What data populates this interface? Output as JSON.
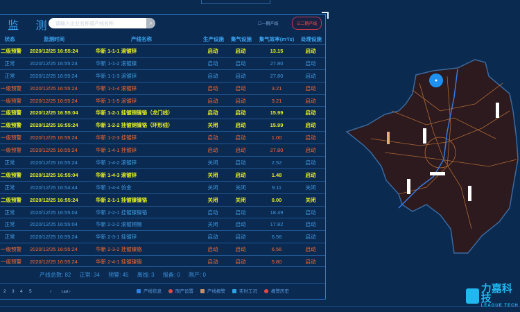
{
  "header": {
    "title": "监 测",
    "search_placeholder": "请输入企业名称或产线名称",
    "options": [
      "一期产线",
      "二期产线"
    ],
    "selected_option": "二期产线"
  },
  "columns": [
    "状态",
    "监测时间",
    "产线名称",
    "生产设施",
    "集气设施",
    "集气效率(m³/s)",
    "处理设施"
  ],
  "rows": [
    {
      "status": "二级预警",
      "level": "warn2",
      "time": "2020/12/25 16:55:24",
      "name": "华新 1-1-1 滚镀锌",
      "prod": "启动",
      "gas": "启动",
      "eff": "13.15",
      "treat": "启动"
    },
    {
      "status": "正常",
      "level": "normal",
      "time": "2020/12/25 16:55:24",
      "name": "华新 1-1-2 滚镀镍",
      "prod": "启动",
      "gas": "启动",
      "eff": "27.80",
      "treat": "启动"
    },
    {
      "status": "正常",
      "level": "normal",
      "time": "2020/12/25 16:55:24",
      "name": "华新 1-1-3 滚镀锌",
      "prod": "启动",
      "gas": "启动",
      "eff": "27.80",
      "treat": "启动"
    },
    {
      "status": "一级预警",
      "level": "warn1",
      "time": "2020/12/25 16:55:24",
      "name": "华新 1-1-4 滚镀锌",
      "prod": "启动",
      "gas": "启动",
      "eff": "3.21",
      "treat": "启动"
    },
    {
      "status": "一级预警",
      "level": "warn1",
      "time": "2020/12/25 16:55:24",
      "name": "华新 1-1-5 滚镀锌",
      "prod": "启动",
      "gas": "启动",
      "eff": "3.21",
      "treat": "启动"
    },
    {
      "status": "二级预警",
      "level": "warn2",
      "time": "2020/12/25 16:55:04",
      "name": "华新 1-2-1 挂镀铜镍铬（龙门线）",
      "prod": "启动",
      "gas": "启动",
      "eff": "15.99",
      "treat": "启动"
    },
    {
      "status": "二级预警",
      "level": "warn2",
      "time": "2020/12/25 16:55:24",
      "name": "华新 1-2-2 挂镀铜镍铬（环形线）",
      "prod": "关闭",
      "gas": "启动",
      "eff": "15.99",
      "treat": "启动"
    },
    {
      "status": "一级预警",
      "level": "warn1",
      "time": "2020/12/25 16:55:24",
      "name": "华新 1-2-3 挂镀锌",
      "prod": "启动",
      "gas": "启动",
      "eff": "1.00",
      "treat": "启动"
    },
    {
      "status": "一级预警",
      "level": "warn1",
      "time": "2020/12/25 16:55:24",
      "name": "华新 1-4-1 挂镀锌",
      "prod": "启动",
      "gas": "启动",
      "eff": "27.80",
      "treat": "启动"
    },
    {
      "status": "正常",
      "level": "normal",
      "time": "2020/12/25 16:55:24",
      "name": "华新 1-4-2 滚镀锌",
      "prod": "关闭",
      "gas": "启动",
      "eff": "2.52",
      "treat": "启动"
    },
    {
      "status": "二级预警",
      "level": "warn2",
      "time": "2020/12/25 16:55:04",
      "name": "华新 1-4-3 滚镀锌",
      "prod": "关闭",
      "gas": "启动",
      "eff": "1.48",
      "treat": "启动"
    },
    {
      "status": "正常",
      "level": "normal",
      "time": "2020/12/25 16:54:44",
      "name": "华新 1-4-4 仿金",
      "prod": "关闭",
      "gas": "关闭",
      "eff": "9.11",
      "treat": "关闭"
    },
    {
      "status": "二级预警",
      "level": "warn2",
      "time": "2020/12/25 16:55:24",
      "name": "华新 2-1-1 挂镀镍镍铬",
      "prod": "关闭",
      "gas": "关闭",
      "eff": "0.00",
      "treat": "关闭"
    },
    {
      "status": "正常",
      "level": "normal",
      "time": "2020/12/25 16:55:04",
      "name": "华新 2-2-1 挂镀镍镍铬",
      "prod": "启动",
      "gas": "启动",
      "eff": "18.49",
      "treat": "启动"
    },
    {
      "status": "正常",
      "level": "normal",
      "time": "2020/12/25 16:55:04",
      "name": "华新 2-2-2 滚镀铜锡",
      "prod": "关闭",
      "gas": "启动",
      "eff": "17.82",
      "treat": "启动"
    },
    {
      "status": "正常",
      "level": "normal",
      "time": "2020/12/25 16:55:24",
      "name": "华新 2-3-1 挂镀锌",
      "prod": "启动",
      "gas": "启动",
      "eff": "6.56",
      "treat": "启动"
    },
    {
      "status": "一级预警",
      "level": "warn1",
      "time": "2020/12/25 16:55:24",
      "name": "华新 2-3-2 挂镀镍铬",
      "prod": "启动",
      "gas": "启动",
      "eff": "6.56",
      "treat": "启动"
    },
    {
      "status": "一级预警",
      "level": "warn1",
      "time": "2020/12/25 16:55:24",
      "name": "华新 2-4-1 挂镀镍铬",
      "prod": "启动",
      "gas": "启动",
      "eff": "5.80",
      "treat": "启动"
    }
  ],
  "summary": {
    "total": "产线总数: 82",
    "normal": "正常: 34",
    "warning": "预警: 45",
    "offline": "离线: 3",
    "standby": "报备: 0",
    "limited": "限产: 0"
  },
  "pagination": {
    "pages": [
      "2",
      "3",
      "4",
      "5"
    ],
    "next": "›",
    "last": "Last ›"
  },
  "legend": [
    {
      "label": "产线信息",
      "icon": "info-icon",
      "color": "#2f7fe0"
    },
    {
      "label": "限产设置",
      "icon": "limit-icon",
      "color": "#e04848"
    },
    {
      "label": "产线报警",
      "icon": "warning-triangle-icon",
      "color": "#c09070"
    },
    {
      "label": "实时工况",
      "icon": "realtime-icon",
      "color": "#2fa0e0"
    },
    {
      "label": "报警历史",
      "icon": "alarm-history-icon",
      "color": "#e04848"
    }
  ],
  "logo": {
    "name": "力嘉科技",
    "sub": "LEAGUE TECH"
  },
  "colors": {
    "normal": "#3f9be0",
    "warn1": "#ff6a2a",
    "warn2": "#e6f020",
    "background": "#0a2a4f"
  }
}
